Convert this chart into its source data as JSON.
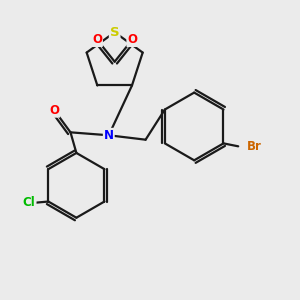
{
  "bg_color": "#ebebeb",
  "bond_color": "#1a1a1a",
  "bond_width": 1.6,
  "atom_colors": {
    "S": "#cccc00",
    "O": "#ff0000",
    "N": "#0000ff",
    "Cl": "#00bb00",
    "Br": "#cc6600",
    "C": "#1a1a1a"
  },
  "font_size": 8.5
}
